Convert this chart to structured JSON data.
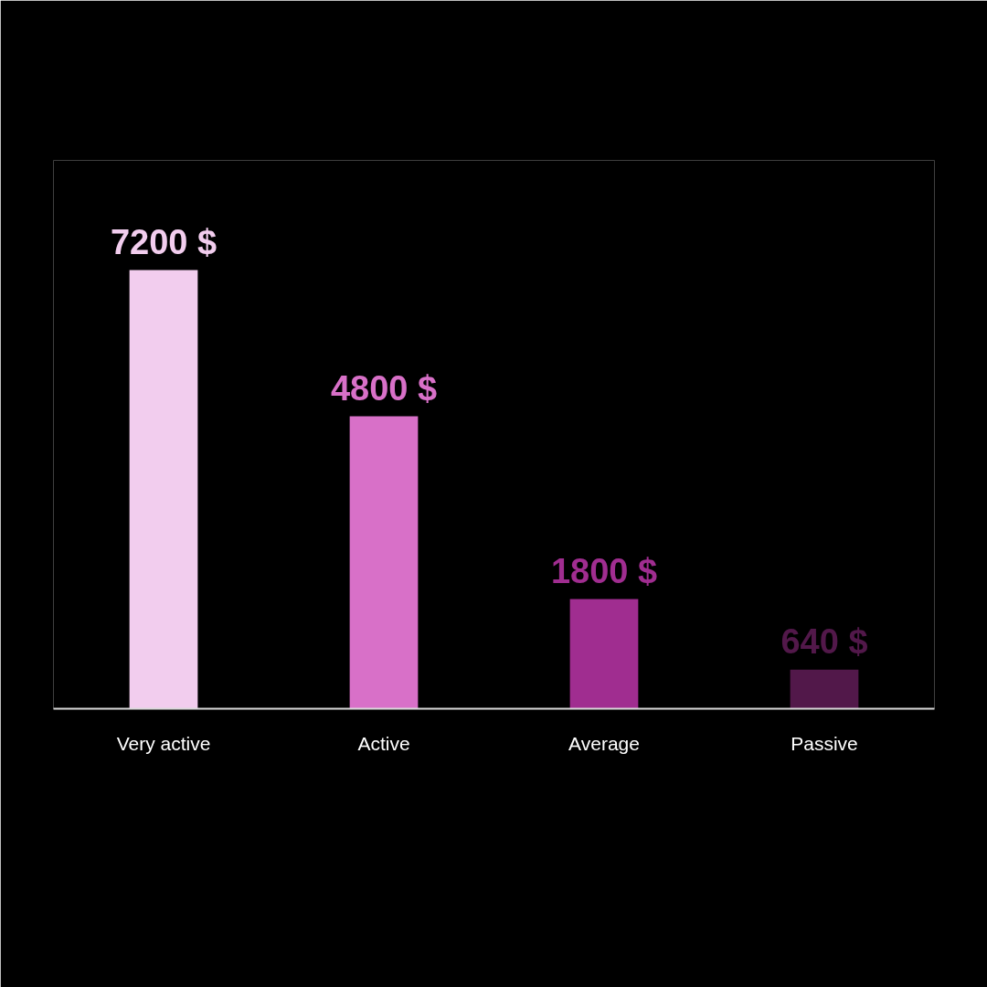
{
  "chart_data": {
    "type": "bar",
    "categories": [
      "Very active",
      "Active",
      "Average",
      "Passive"
    ],
    "values": [
      7200,
      4800,
      1800,
      640
    ],
    "colors": [
      "#f2cdee",
      "#d870c8",
      "#a02d90",
      "#52184a"
    ],
    "value_labels": [
      "7200 $",
      "4800 $",
      "1800 $",
      "640 $"
    ],
    "grid": false
  }
}
